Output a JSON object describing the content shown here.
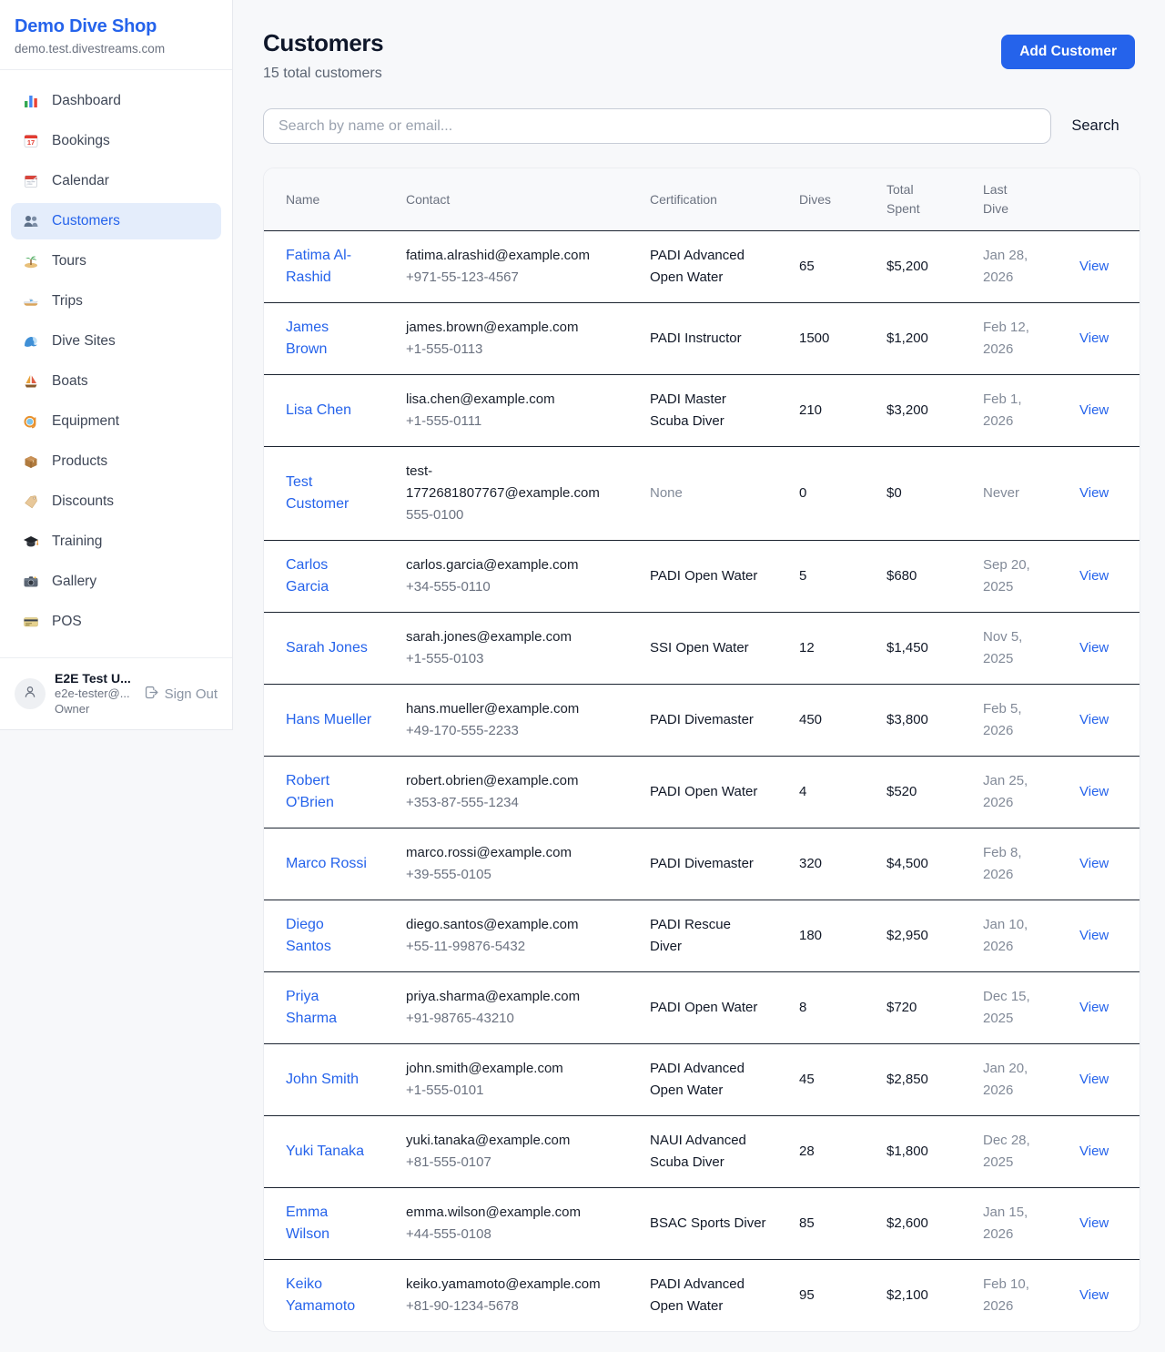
{
  "sidebar": {
    "brand": {
      "name": "Demo Dive Shop",
      "domain": "demo.test.divestreams.com"
    },
    "nav": [
      {
        "label": "Dashboard",
        "icon": "bar-chart-icon",
        "active": false
      },
      {
        "label": "Bookings",
        "icon": "calendar-date-icon",
        "active": false
      },
      {
        "label": "Calendar",
        "icon": "tear-calendar-icon",
        "active": false
      },
      {
        "label": "Customers",
        "icon": "people-icon",
        "active": true
      },
      {
        "label": "Tours",
        "icon": "island-icon",
        "active": false
      },
      {
        "label": "Trips",
        "icon": "speedboat-icon",
        "active": false
      },
      {
        "label": "Dive Sites",
        "icon": "wave-icon",
        "active": false
      },
      {
        "label": "Boats",
        "icon": "sailboat-icon",
        "active": false
      },
      {
        "label": "Equipment",
        "icon": "dive-mask-icon",
        "active": false
      },
      {
        "label": "Products",
        "icon": "package-icon",
        "active": false
      },
      {
        "label": "Discounts",
        "icon": "tag-icon",
        "active": false
      },
      {
        "label": "Training",
        "icon": "graduation-cap-icon",
        "active": false
      },
      {
        "label": "Gallery",
        "icon": "camera-icon",
        "active": false
      },
      {
        "label": "POS",
        "icon": "credit-card-icon",
        "active": false
      }
    ],
    "user": {
      "name": "E2E Test U...",
      "email": "e2e-tester@...",
      "role": "Owner",
      "sign_out_label": "Sign Out"
    }
  },
  "header": {
    "title": "Customers",
    "subtitle": "15 total customers",
    "add_button_label": "Add Customer"
  },
  "search": {
    "placeholder": "Search by name or email...",
    "button_label": "Search"
  },
  "table": {
    "columns": [
      "Name",
      "Contact",
      "Certification",
      "Dives",
      "Total Spent",
      "Last Dive",
      ""
    ],
    "rows": [
      {
        "name": "Fatima Al-Rashid",
        "email": "fatima.alrashid@example.com",
        "phone": "+971-55-123-4567",
        "certification": "PADI Advanced Open Water",
        "dives": "65",
        "total_spent": "$5,200",
        "last_dive": "Jan 28, 2026",
        "action": "View"
      },
      {
        "name": "James Brown",
        "email": "james.brown@example.com",
        "phone": "+1-555-0113",
        "certification": "PADI Instructor",
        "dives": "1500",
        "total_spent": "$1,200",
        "last_dive": "Feb 12, 2026",
        "action": "View"
      },
      {
        "name": "Lisa Chen",
        "email": "lisa.chen@example.com",
        "phone": "+1-555-0111",
        "certification": "PADI Master Scuba Diver",
        "dives": "210",
        "total_spent": "$3,200",
        "last_dive": "Feb 1, 2026",
        "action": "View"
      },
      {
        "name": "Test Customer",
        "email": "test-1772681807767@example.com",
        "phone": "555-0100",
        "certification": "None",
        "dives": "0",
        "total_spent": "$0",
        "last_dive": "Never",
        "action": "View"
      },
      {
        "name": "Carlos Garcia",
        "email": "carlos.garcia@example.com",
        "phone": "+34-555-0110",
        "certification": "PADI Open Water",
        "dives": "5",
        "total_spent": "$680",
        "last_dive": "Sep 20, 2025",
        "action": "View"
      },
      {
        "name": "Sarah Jones",
        "email": "sarah.jones@example.com",
        "phone": "+1-555-0103",
        "certification": "SSI Open Water",
        "dives": "12",
        "total_spent": "$1,450",
        "last_dive": "Nov 5, 2025",
        "action": "View"
      },
      {
        "name": "Hans Mueller",
        "email": "hans.mueller@example.com",
        "phone": "+49-170-555-2233",
        "certification": "PADI Divemaster",
        "dives": "450",
        "total_spent": "$3,800",
        "last_dive": "Feb 5, 2026",
        "action": "View"
      },
      {
        "name": "Robert O'Brien",
        "email": "robert.obrien@example.com",
        "phone": "+353-87-555-1234",
        "certification": "PADI Open Water",
        "dives": "4",
        "total_spent": "$520",
        "last_dive": "Jan 25, 2026",
        "action": "View"
      },
      {
        "name": "Marco Rossi",
        "email": "marco.rossi@example.com",
        "phone": "+39-555-0105",
        "certification": "PADI Divemaster",
        "dives": "320",
        "total_spent": "$4,500",
        "last_dive": "Feb 8, 2026",
        "action": "View"
      },
      {
        "name": "Diego Santos",
        "email": "diego.santos@example.com",
        "phone": "+55-11-99876-5432",
        "certification": "PADI Rescue Diver",
        "dives": "180",
        "total_spent": "$2,950",
        "last_dive": "Jan 10, 2026",
        "action": "View"
      },
      {
        "name": "Priya Sharma",
        "email": "priya.sharma@example.com",
        "phone": "+91-98765-43210",
        "certification": "PADI Open Water",
        "dives": "8",
        "total_spent": "$720",
        "last_dive": "Dec 15, 2025",
        "action": "View"
      },
      {
        "name": "John Smith",
        "email": "john.smith@example.com",
        "phone": "+1-555-0101",
        "certification": "PADI Advanced Open Water",
        "dives": "45",
        "total_spent": "$2,850",
        "last_dive": "Jan 20, 2026",
        "action": "View"
      },
      {
        "name": "Yuki Tanaka",
        "email": "yuki.tanaka@example.com",
        "phone": "+81-555-0107",
        "certification": "NAUI Advanced Scuba Diver",
        "dives": "28",
        "total_spent": "$1,800",
        "last_dive": "Dec 28, 2025",
        "action": "View"
      },
      {
        "name": "Emma Wilson",
        "email": "emma.wilson@example.com",
        "phone": "+44-555-0108",
        "certification": "BSAC Sports Diver",
        "dives": "85",
        "total_spent": "$2,600",
        "last_dive": "Jan 15, 2026",
        "action": "View"
      },
      {
        "name": "Keiko Yamamoto",
        "email": "keiko.yamamoto@example.com",
        "phone": "+81-90-1234-5678",
        "certification": "PADI Advanced Open Water",
        "dives": "95",
        "total_spent": "$2,100",
        "last_dive": "Feb 10, 2026",
        "action": "View"
      }
    ]
  },
  "colors": {
    "accent": "#2563eb",
    "active_nav_bg": "#e4edfb",
    "page_bg": "#f7f8fa",
    "muted_text": "#6b7280",
    "row_border": "#1b2330"
  }
}
